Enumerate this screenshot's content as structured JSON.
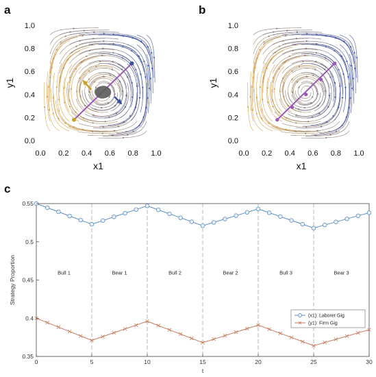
{
  "panel_labels": {
    "a": "a",
    "b": "b",
    "c": "c"
  },
  "chart_data": [
    {
      "type": "streamplot",
      "panel": "a",
      "xlabel": "x1",
      "ylabel": "y1",
      "xlim": [
        0,
        1
      ],
      "ylim": [
        0,
        1
      ],
      "xticks": [
        "0.0",
        "0.2",
        "0.4",
        "0.6",
        "0.8",
        "1.0"
      ],
      "yticks": [
        "0.0",
        "0.2",
        "0.4",
        "0.6",
        "0.8",
        "1.0"
      ],
      "line": {
        "x": [
          0.29,
          0.79
        ],
        "y": [
          0.18,
          0.67
        ],
        "color": "#9b59b6"
      },
      "points": [
        {
          "x": 0.29,
          "y": 0.18,
          "color": "#c9a227"
        },
        {
          "x": 0.79,
          "y": 0.67,
          "color": "#3b4fa0"
        }
      ],
      "center": {
        "x": 0.54,
        "y": 0.42,
        "color": "#5a5a5a"
      },
      "arrows": [
        {
          "from": [
            0.44,
            0.44
          ],
          "to": [
            0.37,
            0.52
          ],
          "color": "#c9a227"
        },
        {
          "from": [
            0.64,
            0.38
          ],
          "to": [
            0.7,
            0.32
          ],
          "color": "#3b4fa0"
        }
      ],
      "flow_colors": {
        "low": "#d8a24a",
        "high": "#3b4fa0"
      }
    },
    {
      "type": "streamplot",
      "panel": "b",
      "xlabel": "x1",
      "ylabel": "y1",
      "xlim": [
        0,
        1
      ],
      "ylim": [
        0,
        1
      ],
      "xticks": [
        "0.0",
        "0.2",
        "0.4",
        "0.6",
        "0.8",
        "1.0"
      ],
      "yticks": [
        "0.0",
        "0.2",
        "0.4",
        "0.6",
        "0.8",
        "1.0"
      ],
      "line": {
        "x": [
          0.29,
          0.79
        ],
        "y": [
          0.18,
          0.67
        ],
        "color": "#9b59b6"
      },
      "points": [
        {
          "x": 0.29,
          "y": 0.18
        },
        {
          "x": 0.42,
          "y": 0.29
        },
        {
          "x": 0.54,
          "y": 0.4
        },
        {
          "x": 0.67,
          "y": 0.53
        },
        {
          "x": 0.79,
          "y": 0.67
        }
      ],
      "flow_colors": {
        "low": "#d8a24a",
        "high": "#3b4fa0"
      }
    },
    {
      "type": "line",
      "panel": "c",
      "xlabel": "t",
      "ylabel": "Strategy Proportion",
      "xlim": [
        0,
        30
      ],
      "ylim": [
        0.35,
        0.55
      ],
      "xticks": [
        "0",
        "5",
        "10",
        "15",
        "20",
        "25",
        "30"
      ],
      "yticks": [
        "0.35",
        "0.4",
        "0.45",
        "0.5",
        "0.55"
      ],
      "phase_boundaries": [
        5,
        10,
        15,
        20,
        25
      ],
      "phases": [
        "Bull 1",
        "Bear 1",
        "Bull 2",
        "Bear 2",
        "Bull 3",
        "Bear 3"
      ],
      "phase_label_y": 0.457,
      "x": [
        0,
        1,
        2,
        3,
        4,
        5,
        6,
        7,
        8,
        9,
        10,
        11,
        12,
        13,
        14,
        15,
        16,
        17,
        18,
        19,
        20,
        21,
        22,
        23,
        24,
        25,
        26,
        27,
        28,
        29,
        30
      ],
      "legend_position": "lower-right",
      "series": [
        {
          "name": "(x1): Laborer Gig",
          "marker": "circle",
          "color": "#5b8ec4",
          "values": [
            0.55,
            0.5446,
            0.5392,
            0.5338,
            0.5284,
            0.523,
            0.5278,
            0.5326,
            0.5374,
            0.5422,
            0.547,
            0.5418,
            0.5366,
            0.5314,
            0.5262,
            0.521,
            0.5254,
            0.5298,
            0.5342,
            0.5386,
            0.543,
            0.538,
            0.533,
            0.528,
            0.523,
            0.518,
            0.522,
            0.526,
            0.53,
            0.534,
            0.538
          ]
        },
        {
          "name": "(y1): Firm Gig",
          "marker": "x",
          "color": "#c87a5e",
          "values": [
            0.4,
            0.3942,
            0.3884,
            0.3826,
            0.3768,
            0.371,
            0.376,
            0.381,
            0.386,
            0.391,
            0.396,
            0.3904,
            0.3848,
            0.3792,
            0.3736,
            0.368,
            0.3726,
            0.3772,
            0.3818,
            0.3864,
            0.391,
            0.3856,
            0.3802,
            0.3748,
            0.3694,
            0.364,
            0.3682,
            0.3724,
            0.3766,
            0.3808,
            0.385
          ]
        }
      ]
    }
  ]
}
